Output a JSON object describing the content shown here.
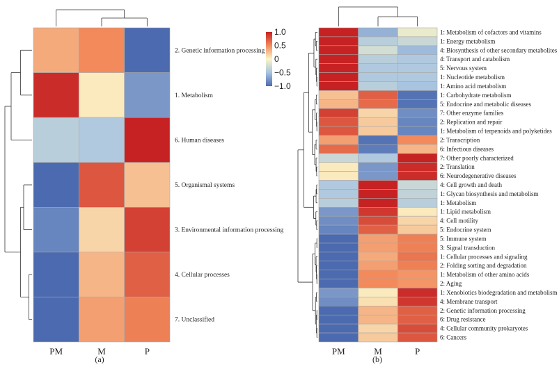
{
  "chart_data": [
    {
      "type": "heatmap",
      "panel_label": "(a)",
      "columns": [
        "PM",
        "M",
        "P"
      ],
      "rows": [
        "2. Genetic information processing",
        "1. Metabolism",
        "6. Human diseases",
        "5. Organismal systems",
        "3. Environmental information processing",
        "4. Cellular processes",
        "7. Unclassified"
      ],
      "values": [
        [
          0.35,
          0.5,
          -1.0
        ],
        [
          0.95,
          0.05,
          -0.75
        ],
        [
          -0.4,
          -0.45,
          1.0
        ],
        [
          -1.0,
          0.75,
          0.25
        ],
        [
          -0.85,
          0.15,
          0.85
        ],
        [
          -1.0,
          0.3,
          0.7
        ],
        [
          -1.0,
          0.4,
          0.55
        ]
      ]
    },
    {
      "type": "heatmap",
      "panel_label": "(b)",
      "columns": [
        "PM",
        "M",
        "P"
      ],
      "rows": [
        "1: Metabolism of cofactors and vitamins",
        "1: Energy metabolism",
        "4: Biosynthesis of other secondary metabolites",
        "4: Transport and catabolism",
        "5: Nervous system",
        "1: Nucleotide metabolism",
        "1: Amino acid metabolism",
        "1: Carbohydrate metabolism",
        "5: Endocrine and metabolic diseases",
        "7: Other enzyme families",
        "2: Replication and repair",
        "1: Metabolism of terpenoids and polyketides",
        "2: Transcription",
        "6: Infectious diseases",
        "7: Other poorly characterized",
        "2: Translation",
        "6: Neurodegenerative diseases",
        "4: Cell growth and death",
        "1: Glycan biosynthesis and metabolism",
        "1: Metabolism",
        "1: Lipid metabolism",
        "4: Cell motility",
        "5: Endocrine system",
        "5: Immune system",
        "3: Signal transduction",
        "1: Cellular processes and signaling",
        "2: Folding sorting and degradation",
        "1: Metabolism of other amino acids",
        "2: Aging",
        "1: Xenobiotics biodegradation and metabolism",
        "4: Membrane transport",
        "2: Genetic information processing",
        "6: Drug resistance",
        "4: Cellular community prokaryotes",
        "6: Cancers"
      ],
      "values": [
        [
          1.0,
          -0.6,
          -0.1
        ],
        [
          1.0,
          -0.4,
          -0.3
        ],
        [
          1.0,
          -0.25,
          -0.55
        ],
        [
          1.0,
          -0.4,
          -0.45
        ],
        [
          1.0,
          -0.45,
          -0.45
        ],
        [
          1.0,
          -0.45,
          -0.45
        ],
        [
          1.0,
          -0.4,
          -0.5
        ],
        [
          0.25,
          0.7,
          -0.95
        ],
        [
          0.3,
          0.65,
          -0.95
        ],
        [
          0.85,
          0.15,
          -0.8
        ],
        [
          0.75,
          0.2,
          -0.85
        ],
        [
          0.75,
          0.2,
          -0.85
        ],
        [
          0.4,
          -0.95,
          0.5
        ],
        [
          0.65,
          -0.9,
          0.3
        ],
        [
          -0.3,
          -0.45,
          1.0
        ],
        [
          0.05,
          -0.75,
          0.95
        ],
        [
          0.05,
          -0.75,
          0.95
        ],
        [
          -0.45,
          1.0,
          -0.3
        ],
        [
          -0.45,
          1.0,
          -0.35
        ],
        [
          -0.4,
          1.0,
          -0.4
        ],
        [
          -0.75,
          0.9,
          0.05
        ],
        [
          -0.8,
          0.8,
          0.15
        ],
        [
          -0.85,
          0.7,
          0.2
        ],
        [
          -1.0,
          0.4,
          0.55
        ],
        [
          -1.0,
          0.4,
          0.55
        ],
        [
          -1.0,
          0.35,
          0.6
        ],
        [
          -1.0,
          0.4,
          0.55
        ],
        [
          -1.0,
          0.5,
          0.45
        ],
        [
          -1.0,
          0.5,
          0.45
        ],
        [
          -0.75,
          0.05,
          0.95
        ],
        [
          -0.8,
          0.1,
          0.9
        ],
        [
          -1.0,
          0.3,
          0.7
        ],
        [
          -1.0,
          0.3,
          0.7
        ],
        [
          -1.0,
          0.15,
          0.8
        ],
        [
          -1.0,
          0.2,
          0.75
        ]
      ]
    }
  ],
  "legend": {
    "ticks": [
      "1.0",
      "0.5",
      "0",
      "−0.5",
      "−1.0"
    ],
    "tick_values": [
      1.0,
      0.5,
      0,
      -0.5,
      -1.0
    ],
    "range": [
      -1.0,
      1.0
    ],
    "colors": [
      "#4b6aaf",
      "#a8c4e0",
      "#fbf5c8",
      "#f28a5c",
      "#c62224"
    ]
  }
}
